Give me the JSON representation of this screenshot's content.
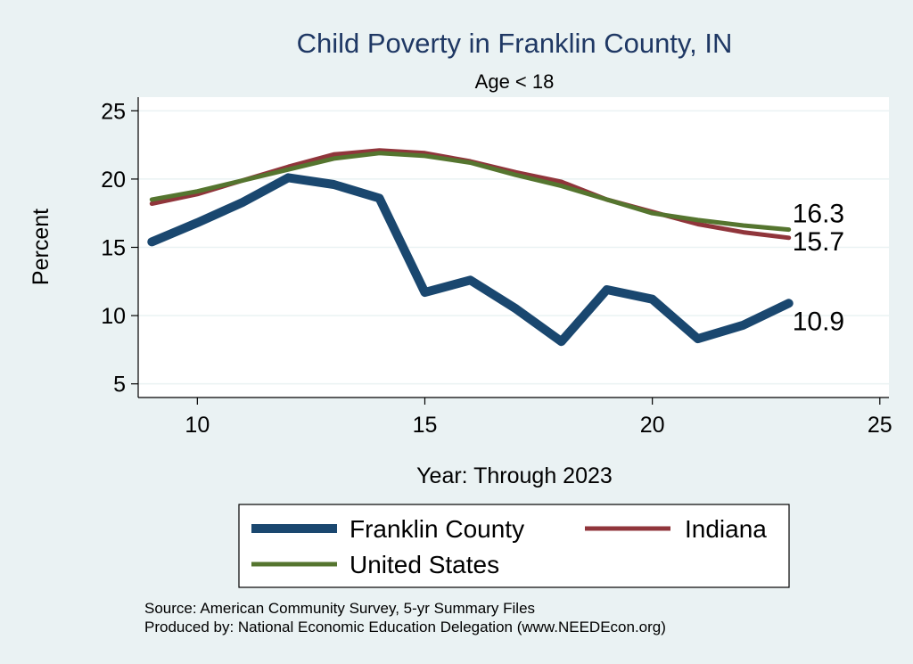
{
  "chart_data": {
    "type": "line",
    "title": "Child Poverty in Franklin County, IN",
    "subtitle": "Age < 18",
    "xlabel": "Year: Through 2023",
    "ylabel": "Percent",
    "xlim": [
      8.7,
      25.2
    ],
    "ylim": [
      4.0,
      26.0
    ],
    "xticks": [
      10,
      15,
      20,
      25
    ],
    "yticks": [
      5,
      10,
      15,
      20,
      25
    ],
    "grid": true,
    "legend_position": "bottom",
    "series": [
      {
        "name": "Franklin County",
        "color": "#1a476f",
        "x": [
          9,
          10,
          11,
          12,
          13,
          14,
          15,
          16,
          17,
          18,
          19,
          20,
          21,
          22,
          23
        ],
        "y": [
          15.4,
          16.8,
          18.3,
          20.1,
          19.6,
          18.6,
          11.7,
          12.6,
          10.5,
          8.1,
          11.9,
          11.2,
          8.3,
          9.3,
          10.9
        ],
        "end_label": "10.9"
      },
      {
        "name": "Indiana",
        "color": "#90353b",
        "x": [
          9,
          10,
          11,
          12,
          13,
          14,
          15,
          16,
          17,
          18,
          19,
          20,
          21,
          22,
          23
        ],
        "y": [
          18.2,
          18.9,
          19.9,
          20.9,
          21.8,
          22.1,
          21.9,
          21.3,
          20.5,
          19.8,
          18.5,
          17.6,
          16.7,
          16.1,
          15.7
        ],
        "end_label": "15.7"
      },
      {
        "name": "United States",
        "color": "#55752f",
        "x": [
          9,
          10,
          11,
          12,
          13,
          14,
          15,
          16,
          17,
          18,
          19,
          20,
          21,
          22,
          23
        ],
        "y": [
          18.5,
          19.1,
          19.9,
          20.7,
          21.5,
          21.9,
          21.7,
          21.2,
          20.3,
          19.5,
          18.5,
          17.5,
          17.0,
          16.6,
          16.3
        ],
        "end_label": "16.3"
      }
    ],
    "notes": [
      "Source: American Community Survey, 5-yr Summary Files",
      "Produced by: National Economic Education Delegation (www.NEEDEcon.org)"
    ]
  }
}
